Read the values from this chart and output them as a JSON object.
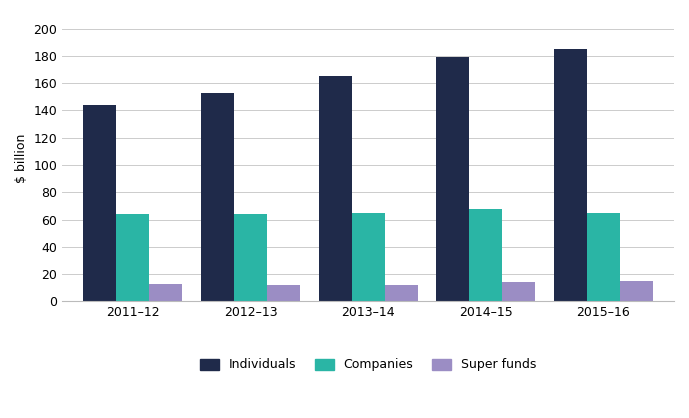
{
  "categories": [
    "2011–12",
    "2012–13",
    "2013–14",
    "2014–15",
    "2015–16"
  ],
  "series": {
    "Individuals": [
      144,
      153,
      165,
      179,
      185
    ],
    "Companies": [
      64,
      64,
      65,
      68,
      65
    ],
    "Super funds": [
      13,
      12,
      12,
      14,
      15
    ]
  },
  "colors": {
    "Individuals": "#1f2a4a",
    "Companies": "#2ab5a5",
    "Super funds": "#9b8dc4"
  },
  "ylabel": "$ billion",
  "ylim": [
    0,
    210
  ],
  "yticks": [
    0,
    20,
    40,
    60,
    80,
    100,
    120,
    140,
    160,
    180,
    200
  ],
  "bar_width": 0.28,
  "background_color": "#ffffff",
  "grid_color": "#cccccc"
}
